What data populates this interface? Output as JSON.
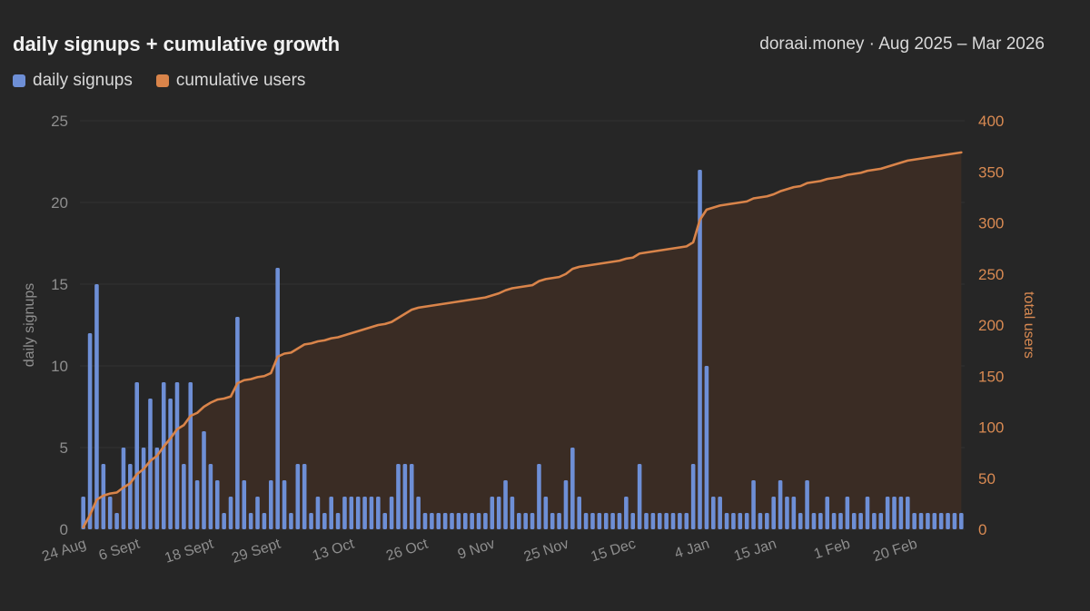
{
  "header": {
    "title": "daily signups + cumulative growth",
    "subtitle": "doraai.money · Aug 2025 – Mar 2026"
  },
  "legend": [
    {
      "label": "daily signups",
      "color": "#6e8fd6"
    },
    {
      "label": "cumulative users",
      "color": "#d9844a"
    }
  ],
  "chart_data": {
    "type": "bar+line",
    "title": "daily signups + cumulative growth",
    "ylabel_left": "daily signups",
    "ylabel_right": "total users",
    "ylim_left": [
      0,
      25
    ],
    "ylim_right": [
      0,
      400
    ],
    "yticks_left": [
      "0",
      "5",
      "10",
      "15",
      "20",
      "25"
    ],
    "yticks_right": [
      "0",
      "50",
      "100",
      "150",
      "200",
      "250",
      "300",
      "350",
      "400"
    ],
    "x_tick_labels": [
      {
        "label": "24 Aug",
        "index": 0
      },
      {
        "label": "6 Sept",
        "index": 8
      },
      {
        "label": "18 Sept",
        "index": 19
      },
      {
        "label": "29 Sept",
        "index": 29
      },
      {
        "label": "13 Oct",
        "index": 40
      },
      {
        "label": "26 Oct",
        "index": 51
      },
      {
        "label": "9 Nov",
        "index": 61
      },
      {
        "label": "25 Nov",
        "index": 72
      },
      {
        "label": "15 Dec",
        "index": 82
      },
      {
        "label": "4 Jan",
        "index": 93
      },
      {
        "label": "15 Jan",
        "index": 103
      },
      {
        "label": "1 Feb",
        "index": 114
      },
      {
        "label": "20 Feb",
        "index": 124
      }
    ],
    "bar_color": "#6e8fd6",
    "line_color": "#d9844a",
    "daily_signups": [
      2,
      12,
      15,
      4,
      2,
      1,
      5,
      4,
      9,
      5,
      8,
      5,
      9,
      8,
      9,
      4,
      9,
      3,
      6,
      4,
      3,
      1,
      2,
      13,
      3,
      1,
      2,
      1,
      3,
      16,
      3,
      1,
      4,
      4,
      1,
      2,
      1,
      2,
      1,
      2,
      2,
      2,
      2,
      2,
      2,
      1,
      2,
      4,
      4,
      4,
      2,
      1,
      1,
      1,
      1,
      1,
      1,
      1,
      1,
      1,
      1,
      2,
      2,
      3,
      2,
      1,
      1,
      1,
      4,
      2,
      1,
      1,
      3,
      5,
      2,
      1,
      1,
      1,
      1,
      1,
      1,
      2,
      1,
      4,
      1,
      1,
      1,
      1,
      1,
      1,
      1,
      4,
      22,
      10,
      2,
      2,
      1,
      1,
      1,
      1,
      3,
      1,
      1,
      2,
      3,
      2,
      2,
      1,
      3,
      1,
      1,
      2,
      1,
      1,
      2,
      1,
      1,
      2,
      1,
      1,
      2,
      2,
      2,
      2,
      1,
      1,
      1,
      1,
      1,
      1,
      1,
      1
    ],
    "cumulative_users": [
      2,
      14,
      29,
      33,
      35,
      36,
      41,
      45,
      54,
      59,
      67,
      72,
      81,
      89,
      98,
      102,
      111,
      114,
      120,
      124,
      127,
      128,
      130,
      143,
      146,
      147,
      149,
      150,
      153,
      169,
      172,
      173,
      177,
      181,
      182,
      184,
      185,
      187,
      188,
      190,
      192,
      194,
      196,
      198,
      200,
      201,
      203,
      207,
      211,
      215,
      217,
      218,
      219,
      220,
      221,
      222,
      223,
      224,
      225,
      226,
      227,
      229,
      231,
      234,
      236,
      237,
      238,
      239,
      243,
      245,
      246,
      247,
      250,
      255,
      257,
      258,
      259,
      260,
      261,
      262,
      263,
      265,
      266,
      270,
      271,
      272,
      273,
      274,
      275,
      276,
      277,
      281,
      303,
      313,
      315,
      317,
      318,
      319,
      320,
      321,
      324,
      325,
      326,
      328,
      331,
      333,
      335,
      336,
      339,
      340,
      341,
      343,
      344,
      345,
      347,
      348,
      349,
      351,
      352,
      353,
      355,
      357,
      359,
      361,
      362,
      363,
      364,
      365,
      366,
      367,
      368,
      369
    ]
  }
}
